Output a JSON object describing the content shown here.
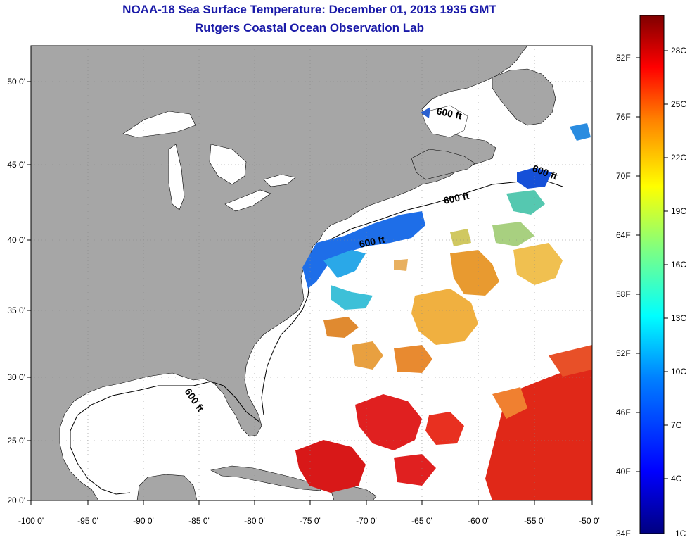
{
  "title": "NOAA-18 Sea Surface Temperature:  December 01, 2013 1935 GMT",
  "subtitle": "Rutgers Coastal Ocean Observation Lab",
  "lon_ticks": [
    "-100 0'",
    "-95 0'",
    "-90 0'",
    "-85 0'",
    "-80 0'",
    "-75 0'",
    "-70 0'",
    "-65 0'",
    "-60 0'",
    "-55 0'",
    "-50 0'"
  ],
  "lat_ticks": [
    "50 0'",
    "45 0'",
    "40 0'",
    "35 0'",
    "30 0'",
    "25 0'",
    "20 0'"
  ],
  "contour_labels": [
    "600 ft",
    "600 ft",
    "600 ft",
    "600 ft",
    "600 ft"
  ],
  "colorbar": {
    "f_labels": [
      "82F",
      "76F",
      "70F",
      "64F",
      "58F",
      "52F",
      "46F",
      "40F",
      "34F"
    ],
    "c_labels": [
      "28C",
      "25C",
      "22C",
      "19C",
      "16C",
      "13C",
      "10C",
      "7C",
      "4C",
      "1C"
    ],
    "colors": [
      "#800000",
      "#ff0000",
      "#ff8000",
      "#ffff00",
      "#80ff80",
      "#00ffff",
      "#0080ff",
      "#0000ff",
      "#000080"
    ]
  },
  "colors": {
    "land": "#a6a6a6",
    "title": "#1a1aa8"
  }
}
